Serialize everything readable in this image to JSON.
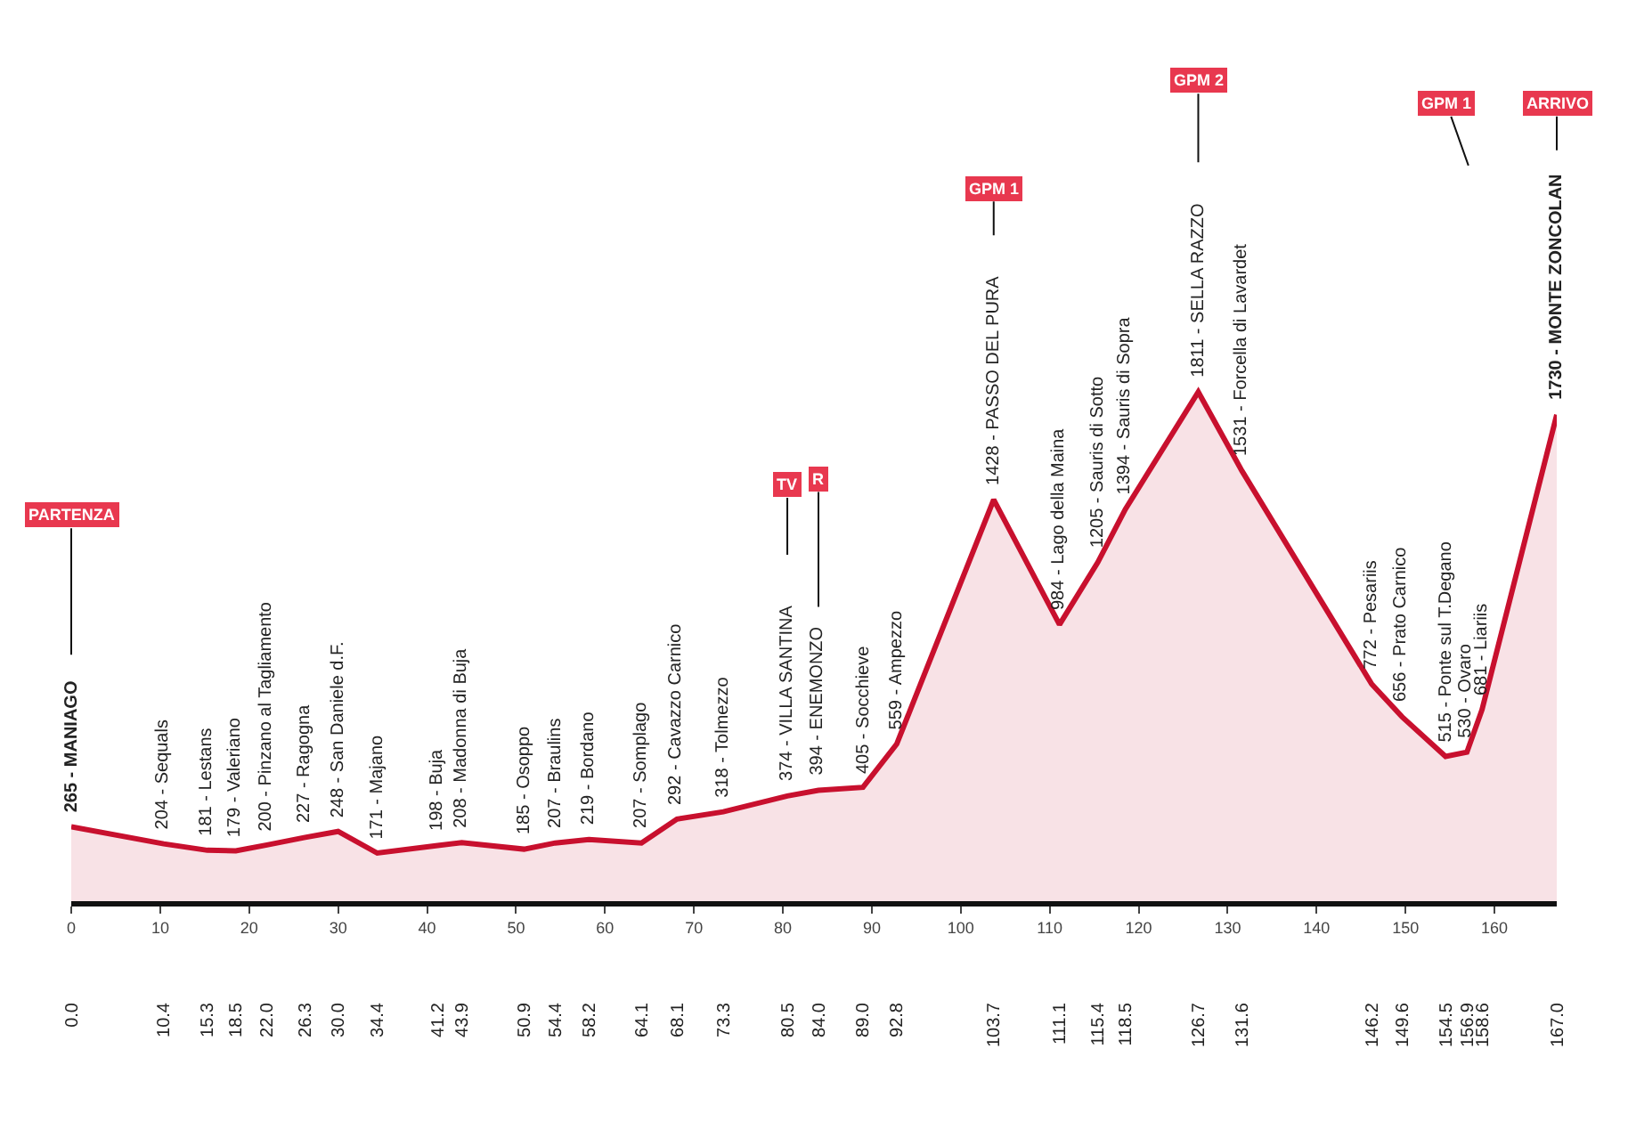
{
  "chart_data": {
    "type": "area",
    "x": [
      0.0,
      10.4,
      15.3,
      18.5,
      22.0,
      26.3,
      30.0,
      34.4,
      41.2,
      43.9,
      50.9,
      54.4,
      58.2,
      64.1,
      68.1,
      73.3,
      80.5,
      84.0,
      89.0,
      92.8,
      103.7,
      111.1,
      115.4,
      118.5,
      126.7,
      131.6,
      146.2,
      149.6,
      154.5,
      156.9,
      158.6,
      167.0
    ],
    "series": [
      {
        "color": "#c8102e",
        "values": [
          265,
          204,
          181,
          179,
          200,
          227,
          248,
          171,
          198,
          208,
          185,
          207,
          219,
          207,
          292,
          318,
          374,
          394,
          405,
          559,
          1428,
          984,
          1205,
          1394,
          1811,
          1531,
          772,
          656,
          515,
          530,
          681,
          1730
        ],
        "value_labels": [
          "265 - MANIAGO",
          "204 - Sequals",
          "181 - Lestans",
          "179 - Valeriano",
          "200 - Pinzano al Tagliamento",
          "227 - Ragogna",
          "248 - San Daniele d.F.",
          "171 - Majano",
          "198 - Buja",
          "208 - Madonna di Buja",
          "185 - Osoppo",
          "207 - Braulins",
          "219 - Bordano",
          "207 - Somplago",
          "292 - Cavazzo Carnico",
          "318 - Tolmezzo",
          "374 - VILLA SANTINA",
          "394 - ENEMONZO",
          "405 - Socchieve",
          "559 - Ampezzo",
          "1428 - PASSO DEL PURA",
          "984 - Lago della Maina",
          "1205 - Sauris di Sotto",
          "1394 - Sauris di Sopra",
          "1811 - SELLA RAZZO",
          "1531 - Forcella di Lavardet",
          "772 - Pesariis",
          "656 - Prato Carnico",
          "515 - Ponte sul T.Degano",
          "530 - Ovaro",
          "681 - Liariis",
          "1730 - MONTE ZONCOLAN"
        ]
      }
    ],
    "xlim": [
      0,
      167
    ],
    "xticks": [
      0,
      10,
      20,
      30,
      40,
      50,
      60,
      70,
      80,
      90,
      100,
      110,
      120,
      130,
      140,
      150,
      160
    ],
    "x2lim": [
      0,
      167
    ],
    "x2ticks": [
      {
        "value": 0.0,
        "label": "0.0"
      },
      10.4,
      15.3,
      18.5,
      {
        "value": 22.0,
        "label": "22.0"
      },
      26.3,
      {
        "value": 30.0,
        "label": "30.0"
      },
      34.4,
      41.2,
      43.9,
      50.9,
      54.4,
      58.2,
      64.1,
      68.1,
      73.3,
      80.5,
      {
        "value": 84.0,
        "label": "84.0"
      },
      {
        "value": 89.0,
        "label": "89.0"
      },
      92.8,
      103.7,
      111.1,
      115.4,
      118.5,
      126.7,
      131.6,
      146.2,
      149.6,
      154.5,
      156.9,
      158.6,
      {
        "value": 167.0,
        "label": "167.0"
      }
    ],
    "annotations": [
      {
        "text": "PARTENZA",
        "x": 0.0,
        "y": 265
      },
      {
        "text": "TV",
        "x": 80.5,
        "y": 374
      },
      {
        "text": "R",
        "x": 84.0,
        "y": 394
      },
      {
        "text": "GPM 1",
        "x": 103.7,
        "y": 1428
      },
      {
        "text": "GPM 2",
        "x": 126.7,
        "y": 1811
      },
      {
        "text": "ARRIVO",
        "x": 167.0,
        "y": 1730
      },
      {
        "text": "GPM 1",
        "x": 167.0,
        "y": 1730
      }
    ],
    "marker": "none",
    "line_style": "solid"
  }
}
